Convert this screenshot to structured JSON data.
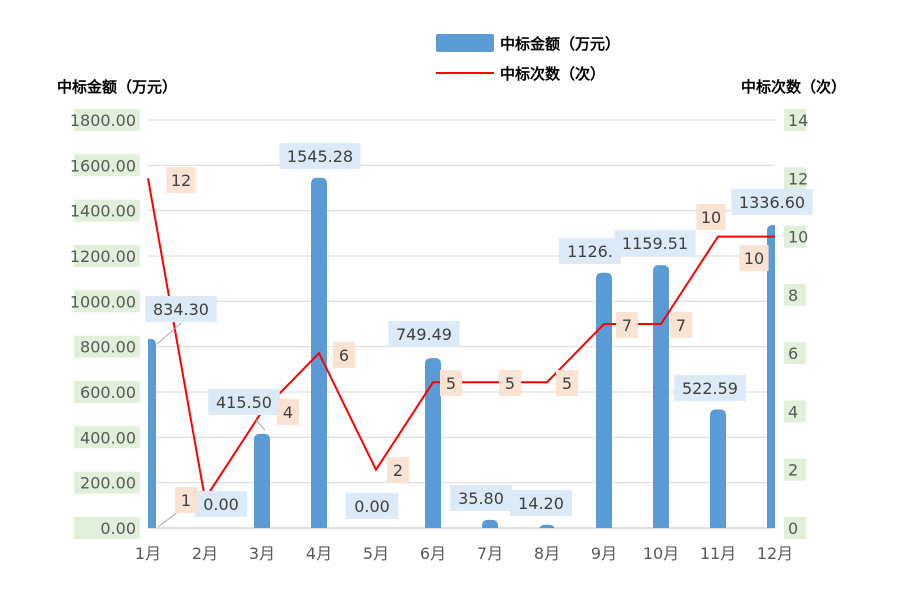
{
  "chart_data": {
    "type": "bar+line",
    "categories": [
      "1月",
      "2月",
      "3月",
      "4月",
      "5月",
      "6月",
      "7月",
      "8月",
      "9月",
      "10月",
      "11月",
      "12月"
    ],
    "series": [
      {
        "name": "中标金额（万元）",
        "type": "bar",
        "axis": "left",
        "values": [
          834.3,
          0.0,
          415.5,
          1545.28,
          0.0,
          749.49,
          35.8,
          14.2,
          1126.0,
          1159.51,
          522.59,
          1336.6
        ],
        "labels": [
          "834.30",
          "0.00",
          "415.50",
          "1545.28",
          "0.00",
          "749.49",
          "35.80",
          "14.20",
          "1126.",
          "1159.51",
          "522.59",
          "1336.60"
        ],
        "color": "#5b9bd5"
      },
      {
        "name": "中标次数（次）",
        "type": "line",
        "axis": "right",
        "values": [
          12,
          1,
          4,
          6,
          2,
          5,
          5,
          5,
          7,
          7,
          10,
          10
        ],
        "labels": [
          "12",
          "1",
          "4",
          "6",
          "2",
          "5",
          "5",
          "5",
          "7",
          "7",
          "10",
          "10"
        ],
        "color": "#ff0000"
      }
    ],
    "ylabel_left": "中标金额（万元）",
    "ylabel_right": "中标次数（次）",
    "ylim_left": [
      0,
      1800
    ],
    "ylim_right": [
      0,
      14
    ],
    "yticks_left": [
      "0.00",
      "200.00",
      "400.00",
      "600.00",
      "800.00",
      "1000.00",
      "1200.00",
      "1400.00",
      "1600.00",
      "1800.00"
    ],
    "yticks_right": [
      "0",
      "2",
      "4",
      "6",
      "8",
      "10",
      "12",
      "14"
    ],
    "grid": true,
    "legend_position": "top"
  },
  "colors": {
    "bar": "#5b9bd5",
    "line": "#ff0000",
    "bar_label_bg": "#dce9f6",
    "line_label_bg": "#fbe3d4",
    "left_tick_bg": "#e2efda",
    "right_tick_bg": "#e2efda",
    "grid": "#d9d9d9"
  }
}
